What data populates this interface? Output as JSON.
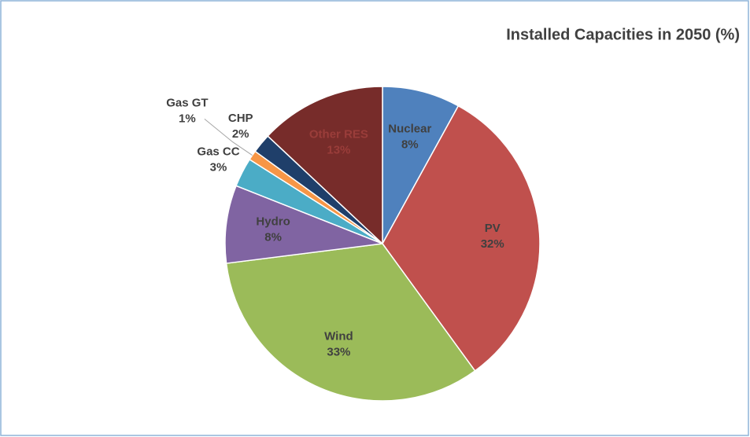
{
  "chart_data": {
    "type": "pie",
    "title": "Installed Capacities in 2050 (%)",
    "categories": [
      "Nuclear",
      "PV",
      "Wind",
      "Hydro",
      "Gas CC",
      "Gas GT",
      "CHP",
      "Other RES"
    ],
    "values": [
      8,
      32,
      33,
      8,
      3,
      1,
      2,
      13
    ],
    "value_labels": [
      "8%",
      "32%",
      "33%",
      "8%",
      "3%",
      "1%",
      "2%",
      "13%"
    ],
    "colors": [
      "#4f81bd",
      "#c0504d",
      "#9bbb59",
      "#8064a2",
      "#4bacc6",
      "#f79646",
      "#1f3f6a",
      "#772c2a"
    ]
  }
}
